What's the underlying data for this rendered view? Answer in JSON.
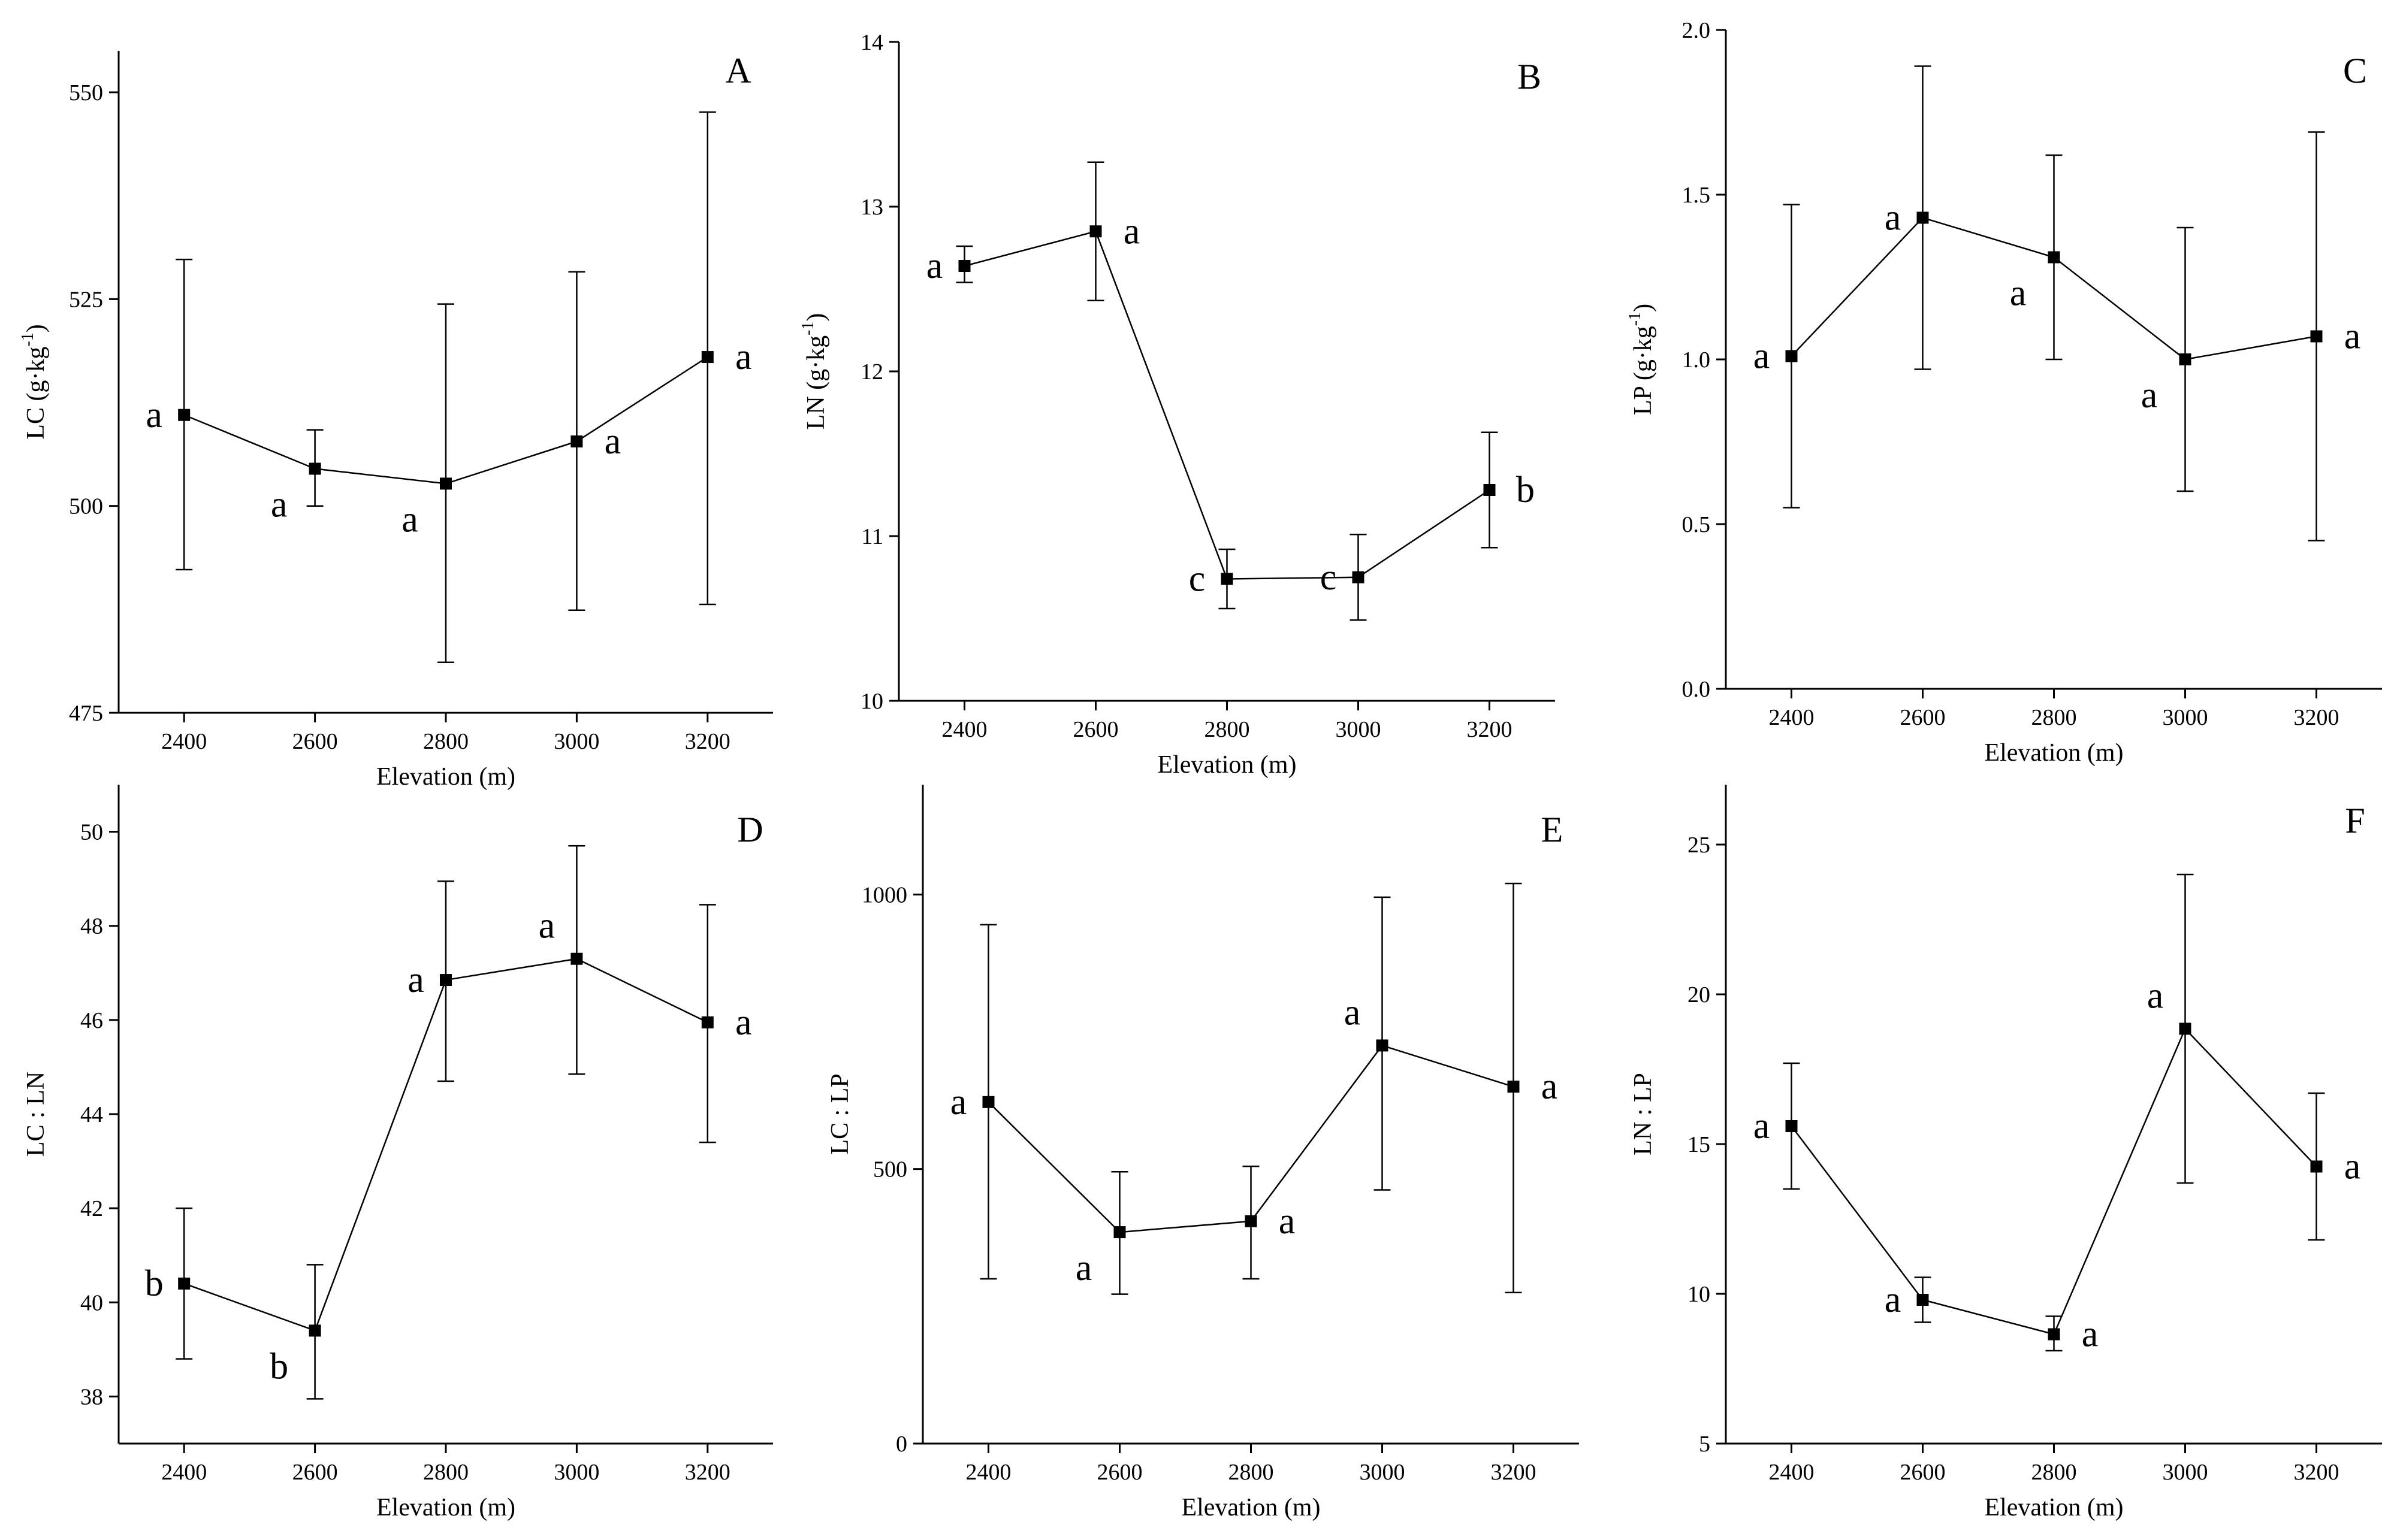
{
  "chart_data": [
    {
      "type": "line",
      "panel": "A",
      "xlabel": "Elevation (m)",
      "ylabel": "LC (g·kg-1)",
      "ylabel_parts": [
        "LC (g·kg",
        "-1",
        ")"
      ],
      "x": [
        2400,
        2600,
        2800,
        3000,
        3200
      ],
      "xlim": [
        2300,
        3300
      ],
      "xticks": [
        "2400",
        "2600",
        "2800",
        "3000",
        "3200"
      ],
      "ylim": [
        475,
        555
      ],
      "yticks": [
        "475",
        "500",
        "525",
        "550"
      ],
      "ytick_values": [
        475,
        500,
        525,
        550
      ],
      "values": [
        511,
        504.5,
        502.7,
        507.8,
        518
      ],
      "err_upper": [
        529.8,
        509.2,
        524.4,
        528.3,
        547.6
      ],
      "err_lower": [
        492.3,
        500,
        481.1,
        487.4,
        488.1
      ],
      "letters": [
        "a",
        "a",
        "a",
        "a",
        "a"
      ],
      "letter_side": [
        "left",
        "below-left",
        "below-left",
        "right",
        "right"
      ]
    },
    {
      "type": "line",
      "panel": "B",
      "xlabel": "Elevation (m)",
      "ylabel": "LN (g·kg-1)",
      "ylabel_parts": [
        "LN (g·kg",
        "-1",
        ")"
      ],
      "x": [
        2400,
        2600,
        2800,
        3000,
        3200
      ],
      "xlim": [
        2300,
        3300
      ],
      "xticks": [
        "2400",
        "2600",
        "2800",
        "3000",
        "3200"
      ],
      "ylim": [
        10,
        14
      ],
      "yticks": [
        "10",
        "11",
        "12",
        "13",
        "14"
      ],
      "ytick_values": [
        10,
        11,
        12,
        13,
        14
      ],
      "values": [
        12.64,
        12.85,
        10.74,
        10.75,
        11.28
      ],
      "err_upper": [
        12.76,
        13.27,
        10.92,
        11.01,
        11.63
      ],
      "err_lower": [
        12.54,
        12.43,
        10.56,
        10.49,
        10.93
      ],
      "letters": [
        "a",
        "a",
        "c",
        "c",
        "b"
      ],
      "letter_side": [
        "left",
        "right",
        "left",
        "left",
        "right"
      ]
    },
    {
      "type": "line",
      "panel": "C",
      "xlabel": "Elevation (m)",
      "ylabel": "LP (g·kg-1)",
      "ylabel_parts": [
        "LP (g·kg",
        "-1",
        ")"
      ],
      "x": [
        2400,
        2600,
        2800,
        3000,
        3200
      ],
      "xlim": [
        2300,
        3300
      ],
      "xticks": [
        "2400",
        "2600",
        "2800",
        "3000",
        "3200"
      ],
      "ylim": [
        0,
        2
      ],
      "yticks": [
        "0.0",
        "0.5",
        "1.0",
        "1.5",
        "2.0"
      ],
      "ytick_values": [
        0,
        0.5,
        1,
        1.5,
        2
      ],
      "values": [
        1.01,
        1.43,
        1.31,
        1.0,
        1.07
      ],
      "err_upper": [
        1.47,
        1.89,
        1.62,
        1.4,
        1.69
      ],
      "err_lower": [
        0.55,
        0.97,
        1.0,
        0.6,
        0.45
      ],
      "letters": [
        "a",
        "a",
        "a",
        "a",
        "a"
      ],
      "letter_side": [
        "left",
        "left",
        "below-left",
        "below-left",
        "right"
      ]
    },
    {
      "type": "line",
      "panel": "D",
      "xlabel": "Elevation (m)",
      "ylabel": "LC : LN",
      "x": [
        2400,
        2600,
        2800,
        3000,
        3200
      ],
      "xlim": [
        2300,
        3300
      ],
      "xticks": [
        "2400",
        "2600",
        "2800",
        "3000",
        "3200"
      ],
      "ylim": [
        37,
        51
      ],
      "yticks": [
        "38",
        "40",
        "42",
        "44",
        "46",
        "48",
        "50"
      ],
      "ytick_values": [
        38,
        40,
        42,
        44,
        46,
        48,
        50
      ],
      "values": [
        40.4,
        39.4,
        46.85,
        47.3,
        45.95
      ],
      "err_upper": [
        42.0,
        40.8,
        48.95,
        49.7,
        48.45
      ],
      "err_lower": [
        38.8,
        37.95,
        44.7,
        44.85,
        43.4
      ],
      "letters": [
        "b",
        "b",
        "a",
        "a",
        "a"
      ],
      "letter_side": [
        "left",
        "below-left",
        "left",
        "above-left",
        "right"
      ]
    },
    {
      "type": "line",
      "panel": "E",
      "xlabel": "Elevation (m)",
      "ylabel": "LC : LP",
      "x": [
        2400,
        2600,
        2800,
        3000,
        3200
      ],
      "xlim": [
        2300,
        3300
      ],
      "xticks": [
        "2400",
        "2600",
        "2800",
        "3000",
        "3200"
      ],
      "ylim": [
        0,
        1200
      ],
      "yticks": [
        "0",
        "500",
        "1000"
      ],
      "ytick_values": [
        0,
        500,
        1000
      ],
      "values": [
        622,
        385,
        405,
        725,
        650
      ],
      "err_upper": [
        945,
        495,
        505,
        995,
        1020
      ],
      "err_lower": [
        300,
        272,
        300,
        462,
        275
      ],
      "letters": [
        "a",
        "a",
        "a",
        "a",
        "a"
      ],
      "letter_side": [
        "left",
        "below-left",
        "right",
        "above-left",
        "right"
      ]
    },
    {
      "type": "line",
      "panel": "F",
      "xlabel": "Elevation (m)",
      "ylabel": "LN : LP",
      "x": [
        2400,
        2600,
        2800,
        3000,
        3200
      ],
      "xlim": [
        2300,
        3300
      ],
      "xticks": [
        "2400",
        "2600",
        "2800",
        "3000",
        "3200"
      ],
      "ylim": [
        5,
        27
      ],
      "yticks": [
        "5",
        "10",
        "15",
        "20",
        "25"
      ],
      "ytick_values": [
        5,
        10,
        15,
        20,
        25
      ],
      "values": [
        15.6,
        9.8,
        8.65,
        18.85,
        14.25
      ],
      "err_upper": [
        17.7,
        10.55,
        9.25,
        24.0,
        16.7
      ],
      "err_lower": [
        13.5,
        9.05,
        8.1,
        13.7,
        11.8
      ],
      "letters": [
        "a",
        "a",
        "a",
        "a",
        "a"
      ],
      "letter_side": [
        "left",
        "left",
        "right",
        "above-left",
        "right"
      ]
    }
  ]
}
